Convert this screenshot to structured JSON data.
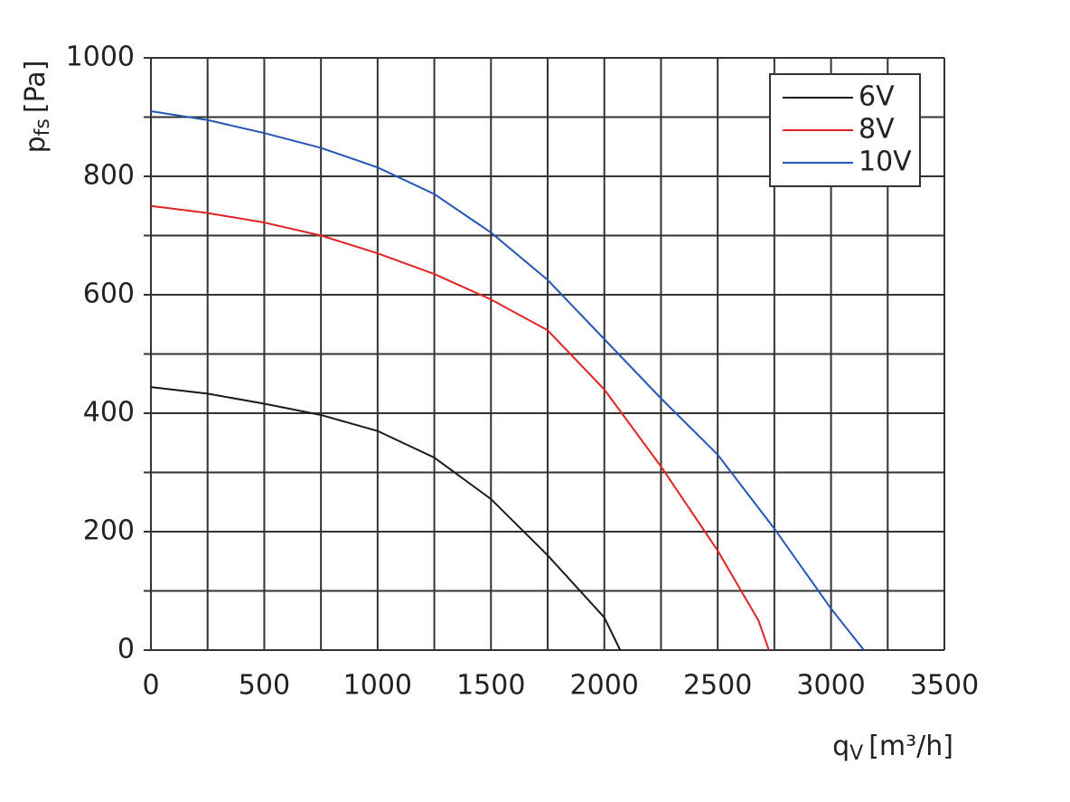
{
  "chart_data": {
    "type": "line",
    "xlabel": {
      "main": "q",
      "sub": "V",
      "unit": "[m³/h]"
    },
    "ylabel": {
      "main": "p",
      "sub": "fs",
      "unit": "[Pa]"
    },
    "xlim": [
      0,
      3500
    ],
    "ylim": [
      0,
      1000
    ],
    "xticks": [
      0,
      500,
      1000,
      1500,
      2000,
      2500,
      3000,
      3500
    ],
    "yticks": [
      0,
      200,
      400,
      600,
      800,
      1000
    ],
    "xminorticks": [
      250,
      750,
      1250,
      1750,
      2250,
      2750,
      3250
    ],
    "yminorticks": [
      100,
      300,
      500,
      700,
      900
    ],
    "grid": true,
    "legend": "upper right",
    "series": [
      {
        "name": "6V",
        "color": "#1a1a1a",
        "x": [
          0,
          250,
          500,
          750,
          1000,
          1250,
          1500,
          1750,
          2000,
          2070
        ],
        "values": [
          444,
          433,
          416,
          397,
          370,
          325,
          255,
          160,
          55,
          0
        ]
      },
      {
        "name": "8V",
        "color": "#e02424",
        "x": [
          0,
          250,
          500,
          750,
          1000,
          1250,
          1500,
          1750,
          2000,
          2250,
          2500,
          2680,
          2726
        ],
        "values": [
          750,
          738,
          722,
          700,
          670,
          635,
          592,
          540,
          440,
          310,
          168,
          50,
          0
        ]
      },
      {
        "name": "10V",
        "color": "#2456b4",
        "x": [
          0,
          250,
          500,
          750,
          1000,
          1250,
          1500,
          1750,
          2000,
          2250,
          2500,
          2750,
          3000,
          3145
        ],
        "values": [
          910,
          895,
          873,
          848,
          815,
          770,
          705,
          625,
          525,
          425,
          330,
          205,
          70,
          0
        ]
      }
    ]
  }
}
